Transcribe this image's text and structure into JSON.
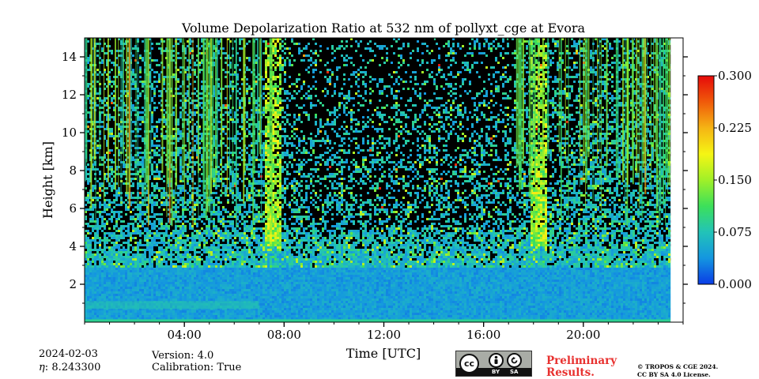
{
  "chart_data": {
    "type": "heatmap",
    "title": "Volume Depolarization Ratio at 532 nm of pollyxt_cge at Evora",
    "xlabel": "Time [UTC]",
    "ylabel": "Height [km]",
    "x_range_hours": [
      0,
      24
    ],
    "x_data_extent_hours": [
      0.0,
      23.5
    ],
    "ylim": [
      0,
      15
    ],
    "x_ticks": [
      {
        "hour": 4,
        "label": "04:00"
      },
      {
        "hour": 8,
        "label": "08:00"
      },
      {
        "hour": 12,
        "label": "12:00"
      },
      {
        "hour": 16,
        "label": "16:00"
      },
      {
        "hour": 20,
        "label": "20:00"
      }
    ],
    "y_ticks": [
      {
        "value": 2,
        "label": "2"
      },
      {
        "value": 4,
        "label": "4"
      },
      {
        "value": 6,
        "label": "6"
      },
      {
        "value": 8,
        "label": "8"
      },
      {
        "value": 10,
        "label": "10"
      },
      {
        "value": 12,
        "label": "12"
      },
      {
        "value": 14,
        "label": "14"
      }
    ],
    "colorbar": {
      "min": 0.0,
      "max": 0.3,
      "ticks": [
        {
          "value": 0.0,
          "label": "0.000"
        },
        {
          "value": 0.075,
          "label": "0.075"
        },
        {
          "value": 0.15,
          "label": "0.150"
        },
        {
          "value": 0.225,
          "label": "0.225"
        },
        {
          "value": 0.3,
          "label": "0.300"
        }
      ],
      "colors": [
        "#0a3ce6",
        "#1496e0",
        "#22c3b8",
        "#3ce05a",
        "#a0f028",
        "#f5f514",
        "#f5b414",
        "#f05a0a",
        "#e60a0a"
      ]
    },
    "features": [
      {
        "description": "elevated depolarization layer",
        "height_km": 0.9,
        "time_range_hours": [
          0,
          7
        ]
      },
      {
        "description": "dust streaks with high depolarization",
        "time_range_hours": [
          7.2,
          7.8
        ]
      },
      {
        "description": "dust streaks with high depolarization",
        "time_range_hours": [
          17.8,
          18.5
        ]
      }
    ]
  },
  "info": {
    "date": "2024-02-03",
    "eta": "8.243300",
    "eta_label": "η",
    "version": "Version: 4.0",
    "calibration": "Calibration: True"
  },
  "license": {
    "badge_by": "BY",
    "badge_sa": "SA",
    "badge_cc": "cc",
    "preliminary_line1": "Preliminary",
    "preliminary_line2": "Results.",
    "copyright_line1": "© TROPOS & CGE 2024.",
    "copyright_line2": "CC BY SA 4.0 License."
  }
}
